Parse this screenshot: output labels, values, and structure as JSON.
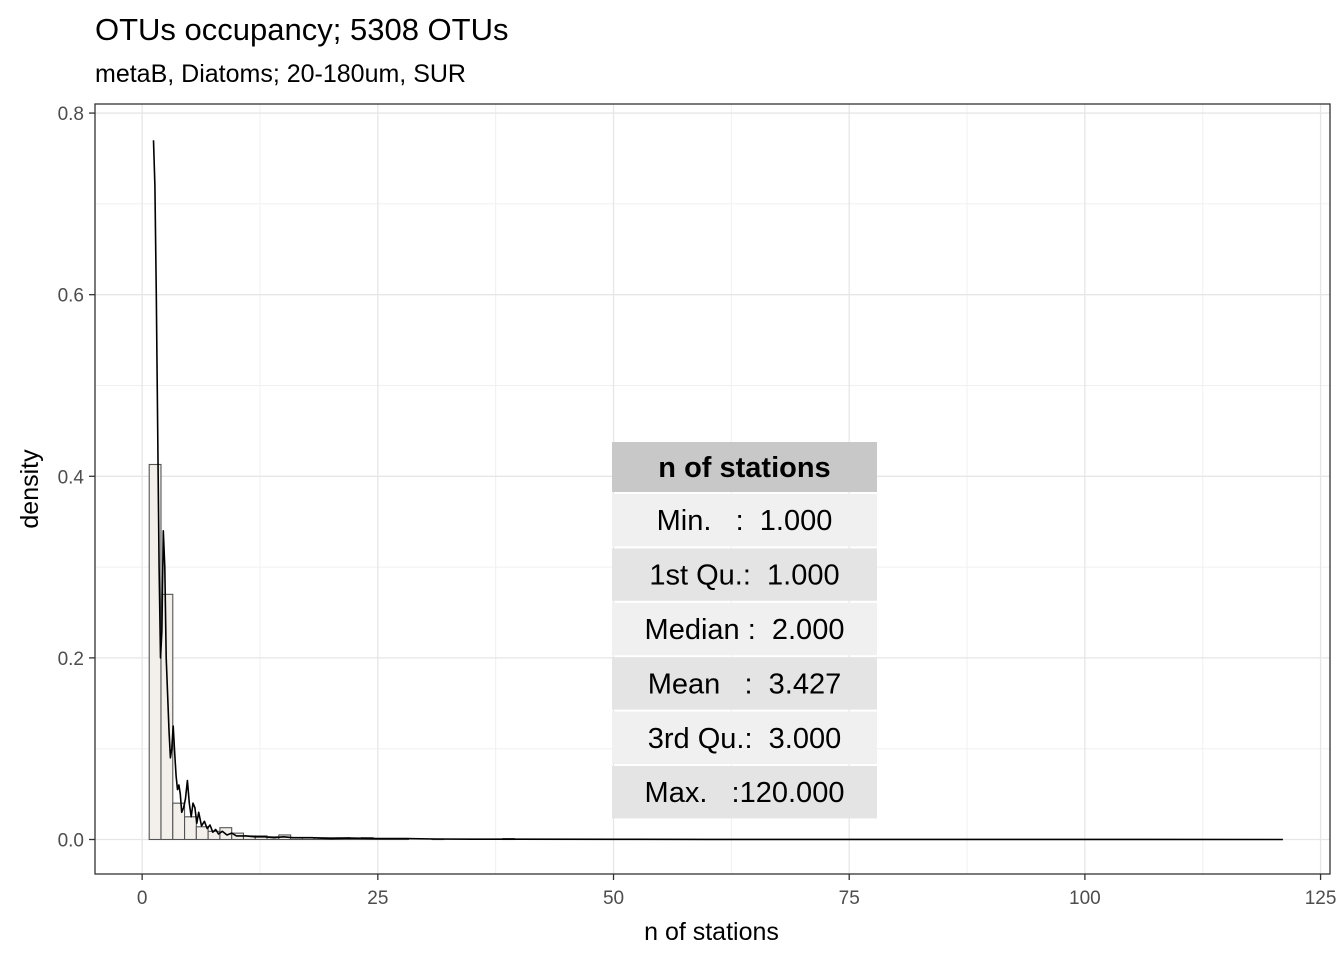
{
  "chart_data": {
    "type": "bar",
    "title": "OTUs occupancy; 5308 OTUs",
    "subtitle": "metaB, Diatoms; 20-180um, SUR",
    "xlabel": "n of stations",
    "ylabel": "density",
    "xlim": [
      -5,
      126
    ],
    "ylim": [
      -0.038,
      0.81
    ],
    "x_ticks": [
      0,
      25,
      50,
      75,
      100,
      125
    ],
    "y_ticks": [
      0.0,
      0.2,
      0.4,
      0.6,
      0.8
    ],
    "x_tick_labels": [
      "0",
      "25",
      "50",
      "75",
      "100",
      "125"
    ],
    "y_tick_labels": [
      "0.0",
      "0.2",
      "0.4",
      "0.6",
      "0.8"
    ],
    "grid": true,
    "histogram": {
      "bin_width": 1.25,
      "bins": [
        {
          "x0": 0.75,
          "x1": 2.0,
          "density": 0.413
        },
        {
          "x0": 2.0,
          "x1": 3.25,
          "density": 0.27
        },
        {
          "x0": 3.25,
          "x1": 4.5,
          "density": 0.04
        },
        {
          "x0": 4.5,
          "x1": 5.75,
          "density": 0.025
        },
        {
          "x0": 5.75,
          "x1": 7.0,
          "density": 0.014
        },
        {
          "x0": 7.0,
          "x1": 8.25,
          "density": 0.009
        },
        {
          "x0": 8.25,
          "x1": 9.5,
          "density": 0.013
        },
        {
          "x0": 9.5,
          "x1": 10.75,
          "density": 0.007
        },
        {
          "x0": 10.75,
          "x1": 12.0,
          "density": 0.004
        },
        {
          "x0": 12.0,
          "x1": 13.25,
          "density": 0.004
        },
        {
          "x0": 13.25,
          "x1": 14.5,
          "density": 0.003
        },
        {
          "x0": 14.5,
          "x1": 15.75,
          "density": 0.005
        },
        {
          "x0": 15.75,
          "x1": 17.0,
          "density": 0.002
        },
        {
          "x0": 17.0,
          "x1": 18.25,
          "density": 0.002
        },
        {
          "x0": 18.25,
          "x1": 19.5,
          "density": 0.002
        },
        {
          "x0": 19.5,
          "x1": 20.75,
          "density": 0.002
        },
        {
          "x0": 20.75,
          "x1": 22.0,
          "density": 0.002
        },
        {
          "x0": 22.0,
          "x1": 23.25,
          "density": 0.001
        },
        {
          "x0": 23.25,
          "x1": 24.5,
          "density": 0.002
        },
        {
          "x0": 24.5,
          "x1": 25.75,
          "density": 0.001
        },
        {
          "x0": 25.75,
          "x1": 27.0,
          "density": 0.001
        },
        {
          "x0": 27.0,
          "x1": 28.25,
          "density": 0.001
        },
        {
          "x0": 30.75,
          "x1": 32.0,
          "density": 0.0005
        },
        {
          "x0": 38.25,
          "x1": 39.5,
          "density": 0.001
        }
      ]
    },
    "density_curve": {
      "x": [
        1.2,
        1.35,
        1.5,
        1.65,
        1.8,
        1.95,
        2.1,
        2.25,
        2.4,
        2.55,
        2.7,
        2.85,
        3.0,
        3.15,
        3.3,
        3.45,
        3.6,
        3.75,
        3.9,
        4.05,
        4.2,
        4.4,
        4.6,
        4.8,
        5.0,
        5.2,
        5.4,
        5.6,
        5.8,
        6.0,
        6.3,
        6.6,
        6.9,
        7.2,
        7.5,
        7.8,
        8.1,
        8.5,
        9.0,
        9.5,
        10.0,
        11.0,
        12.0,
        13.0,
        14.0,
        15.0,
        16.0,
        18.0,
        20.0,
        22.0,
        25.0,
        28.0,
        31.0,
        35.0,
        40.0,
        50.0,
        60.0,
        80.0,
        100.0,
        121.0
      ],
      "y": [
        0.77,
        0.72,
        0.6,
        0.45,
        0.3,
        0.2,
        0.23,
        0.34,
        0.3,
        0.2,
        0.16,
        0.12,
        0.09,
        0.1,
        0.125,
        0.095,
        0.07,
        0.055,
        0.06,
        0.05,
        0.03,
        0.035,
        0.045,
        0.065,
        0.04,
        0.025,
        0.04,
        0.035,
        0.018,
        0.03,
        0.015,
        0.02,
        0.012,
        0.016,
        0.008,
        0.011,
        0.006,
        0.009,
        0.005,
        0.007,
        0.004,
        0.004,
        0.003,
        0.003,
        0.002,
        0.003,
        0.002,
        0.002,
        0.001,
        0.0015,
        0.001,
        0.001,
        0.0005,
        0.0003,
        0.0003,
        0.0002,
        0.0001,
        0.0001,
        0.0001,
        0.0
      ]
    },
    "summary_table": {
      "header": "n of stations",
      "rows": [
        "Min.   :  1.000",
        "1st Qu.:  1.000",
        "Median :  2.000",
        "Mean   :  3.427",
        "3rd Qu.:  3.000",
        "Max.   :120.000"
      ]
    }
  }
}
